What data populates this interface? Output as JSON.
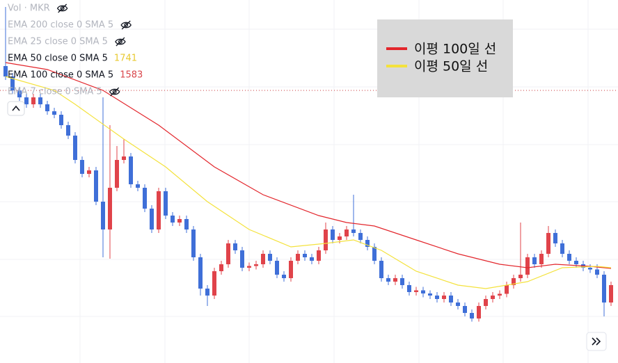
{
  "chart_data": {
    "type": "candlestick",
    "open": [
      2620,
      2560,
      2480,
      2440,
      2400,
      2440,
      2400,
      2360,
      2340,
      2280,
      2220,
      2080,
      2000,
      2020,
      1840,
      1680,
      1920,
      2080,
      2100,
      1940,
      1920,
      1800,
      1680,
      1900,
      1760,
      1720,
      1740,
      1680,
      1520,
      1340,
      1300,
      1440,
      1480,
      1600,
      1560,
      1460,
      1470,
      1480,
      1540,
      1500,
      1420,
      1400,
      1500,
      1540,
      1520,
      1500,
      1560,
      1680,
      1620,
      1640,
      1680,
      1660,
      1620,
      1580,
      1500,
      1400,
      1380,
      1400,
      1360,
      1320,
      1330,
      1312,
      1300,
      1280,
      1300,
      1260,
      1240,
      1200,
      1168,
      1240,
      1280,
      1300,
      1310,
      1360,
      1400,
      1420,
      1520,
      1480,
      1540,
      1660,
      1600,
      1540,
      1500,
      1480,
      1460,
      1450,
      1420,
      1260
    ],
    "high": [
      2960,
      2580,
      2500,
      2460,
      2460,
      2460,
      2420,
      2380,
      2360,
      2300,
      2240,
      2100,
      2040,
      2040,
      2440,
      2280,
      2160,
      2200,
      2120,
      1960,
      1940,
      1820,
      1920,
      1920,
      1780,
      1760,
      1760,
      1700,
      1540,
      1360,
      1460,
      1500,
      1620,
      1620,
      1580,
      1490,
      1500,
      1560,
      1560,
      1520,
      1440,
      1520,
      1560,
      1560,
      1540,
      1580,
      1720,
      1700,
      1660,
      1700,
      1880,
      1680,
      1640,
      1600,
      1520,
      1420,
      1420,
      1420,
      1380,
      1350,
      1350,
      1330,
      1320,
      1320,
      1320,
      1280,
      1260,
      1220,
      1260,
      1300,
      1320,
      1330,
      1380,
      1420,
      1720,
      1540,
      1540,
      1560,
      1700,
      1680,
      1620,
      1560,
      1520,
      1500,
      1480,
      1480,
      1440,
      1380
    ],
    "low": [
      2540,
      2460,
      2420,
      2380,
      2380,
      2380,
      2340,
      2320,
      2260,
      2200,
      2060,
      1980,
      1980,
      1820,
      1520,
      1512,
      1900,
      2060,
      1920,
      1900,
      1780,
      1660,
      1660,
      1740,
      1700,
      1700,
      1660,
      1500,
      1300,
      1240,
      1280,
      1420,
      1460,
      1540,
      1440,
      1440,
      1450,
      1460,
      1480,
      1400,
      1380,
      1380,
      1480,
      1500,
      1480,
      1480,
      1540,
      1600,
      1600,
      1620,
      1640,
      1600,
      1560,
      1480,
      1380,
      1360,
      1360,
      1340,
      1300,
      1300,
      1290,
      1280,
      1260,
      1260,
      1240,
      1220,
      1180,
      1150,
      1150,
      1220,
      1260,
      1280,
      1290,
      1340,
      1380,
      1400,
      1460,
      1460,
      1520,
      1580,
      1520,
      1480,
      1460,
      1440,
      1430,
      1400,
      1180,
      1240
    ],
    "close": [
      2560,
      2480,
      2440,
      2400,
      2440,
      2400,
      2360,
      2340,
      2280,
      2220,
      2080,
      2000,
      2020,
      1840,
      1680,
      1920,
      2080,
      2100,
      1940,
      1920,
      1800,
      1680,
      1900,
      1760,
      1720,
      1740,
      1680,
      1520,
      1340,
      1300,
      1440,
      1480,
      1600,
      1560,
      1460,
      1470,
      1480,
      1540,
      1500,
      1420,
      1400,
      1500,
      1540,
      1520,
      1500,
      1560,
      1680,
      1620,
      1640,
      1680,
      1660,
      1620,
      1580,
      1500,
      1400,
      1380,
      1400,
      1360,
      1320,
      1330,
      1312,
      1300,
      1280,
      1300,
      1260,
      1240,
      1200,
      1168,
      1240,
      1280,
      1300,
      1310,
      1360,
      1400,
      1420,
      1520,
      1480,
      1540,
      1660,
      1600,
      1540,
      1500,
      1480,
      1460,
      1450,
      1420,
      1260,
      1360
    ],
    "up_color": "#e0434a",
    "down_color": "#3f6fd8",
    "ylim": [
      912,
      3000
    ],
    "price_line": {
      "value": 2480,
      "color": "#c7343a"
    },
    "series": [
      {
        "name": "이평 100일 선",
        "color": "#e3262c",
        "x": [
          0,
          6,
          14,
          22,
          30,
          37,
          45,
          49,
          53,
          59,
          65,
          71,
          75,
          79,
          84,
          87
        ],
        "values": [
          2640,
          2600,
          2480,
          2280,
          2040,
          1880,
          1760,
          1720,
          1700,
          1620,
          1540,
          1480,
          1460,
          1480,
          1468,
          1456
        ]
      },
      {
        "name": "이평 50일 선",
        "color": "#f4e23c",
        "x": [
          0,
          7,
          10,
          17,
          23,
          29,
          35,
          41,
          46,
          50,
          54,
          59,
          65,
          69,
          75,
          80,
          85,
          87
        ],
        "values": [
          2560,
          2480,
          2400,
          2200,
          2040,
          1840,
          1680,
          1580,
          1600,
          1620,
          1560,
          1440,
          1360,
          1340,
          1380,
          1460,
          1468,
          1460
        ]
      }
    ]
  },
  "indicators": [
    {
      "label": "Vol · MKR",
      "hidden": true
    },
    {
      "label": "EMA 200 close 0 SMA 5",
      "hidden": true
    },
    {
      "label": "EMA 25 close 0 SMA 5",
      "hidden": true
    },
    {
      "label": "EMA 50 close 0 SMA 5",
      "hidden": false,
      "value": 1741,
      "color": "#e8c930"
    },
    {
      "label": "EMA 100 close 0 SMA 5",
      "hidden": false,
      "value": 1583,
      "color": "#d9454a"
    },
    {
      "label": "EMA 7 close 0 SMA 5",
      "hidden": true
    }
  ]
}
